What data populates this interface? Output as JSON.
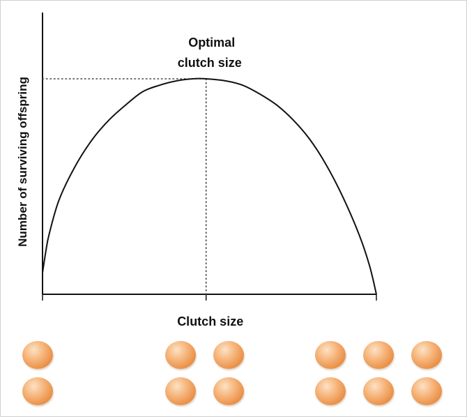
{
  "chart_data": {
    "type": "line",
    "title": "",
    "xlabel": "Clutch size",
    "ylabel": "Number of surviving offspring",
    "xlim": [
      0,
      1
    ],
    "ylim": [
      0,
      1
    ],
    "grid": false,
    "series": [
      {
        "x": [
          0,
          0.01,
          0.02,
          0.05,
          0.1,
          0.15,
          0.2,
          0.25,
          0.3,
          0.35,
          0.4,
          0.45,
          0.49,
          0.55,
          0.6,
          0.65,
          0.7,
          0.75,
          0.8,
          0.85,
          0.9,
          0.95,
          0.98,
          1.0
        ],
        "y": [
          0.1,
          0.2,
          0.28,
          0.44,
          0.6,
          0.72,
          0.81,
          0.88,
          0.94,
          0.97,
          0.99,
          1.0,
          1.0,
          0.99,
          0.97,
          0.93,
          0.88,
          0.81,
          0.72,
          0.6,
          0.45,
          0.27,
          0.13,
          0.0
        ]
      }
    ],
    "annotations": [
      {
        "text": "Optimal clutch size",
        "lines": [
          "Optimal",
          "clutch size"
        ],
        "x": 0.49,
        "y": 1.0
      }
    ],
    "reference_lines": [
      {
        "orientation": "horizontal",
        "value": 1.0,
        "style": "dotted"
      },
      {
        "orientation": "vertical",
        "value": 0.49,
        "style": "dotted"
      }
    ],
    "egg_groups": [
      {
        "x": 0.0,
        "count": 2
      },
      {
        "x": 0.49,
        "count": 4
      },
      {
        "x": 1.0,
        "count": 6
      }
    ]
  }
}
